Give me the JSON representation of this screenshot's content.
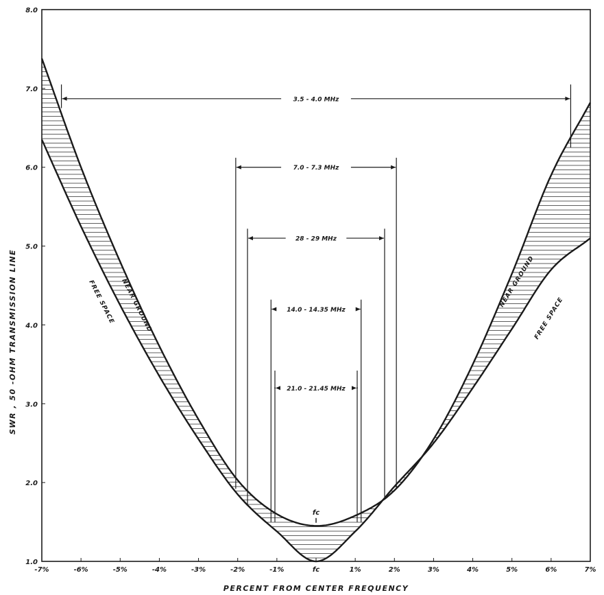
{
  "chart_data": {
    "type": "line",
    "title": "",
    "xlabel": "PERCENT FROM CENTER FREQUENCY",
    "ylabel": "SWR , 50 -OHM TRANSMISSION LINE",
    "xlim": [
      -7,
      7
    ],
    "ylim": [
      1.0,
      8.0
    ],
    "x_ticks": [
      -7,
      -6,
      -5,
      -4,
      -3,
      -2,
      -1,
      0,
      1,
      2,
      3,
      4,
      5,
      6,
      7
    ],
    "x_tick_labels": [
      "-7%",
      "-6%",
      "-5%",
      "-4%",
      "-3%",
      "-2%",
      "-1%",
      "fc",
      "1%",
      "2%",
      "3%",
      "4%",
      "5%",
      "6%",
      "7%"
    ],
    "y_ticks": [
      1.0,
      2.0,
      3.0,
      4.0,
      5.0,
      6.0,
      7.0,
      8.0
    ],
    "y_tick_labels": [
      "1.0",
      "2.0",
      "3.0",
      "4.0",
      "5.0",
      "6.0",
      "7.0",
      "8.0"
    ],
    "grid": false,
    "series": [
      {
        "name": "NEAR GROUND",
        "x": [
          -7,
          -6,
          -5,
          -4,
          -3,
          -2,
          -1,
          0,
          1,
          2,
          3,
          4,
          5,
          6,
          7
        ],
        "y": [
          7.38,
          6.0,
          4.8,
          3.73,
          2.8,
          2.03,
          1.6,
          1.45,
          1.58,
          1.9,
          2.55,
          3.5,
          4.65,
          5.9,
          6.82
        ]
      },
      {
        "name": "FREE SPACE",
        "x": [
          -7,
          -6,
          -5,
          -4,
          -3,
          -2,
          -1,
          0,
          1,
          2,
          3,
          4,
          5,
          6,
          7
        ],
        "y": [
          6.35,
          5.25,
          4.25,
          3.35,
          2.55,
          1.85,
          1.38,
          1.0,
          1.38,
          1.95,
          2.5,
          3.2,
          3.95,
          4.7,
          5.1
        ]
      }
    ],
    "bandwidth_markers": [
      {
        "label": "3.5 - 4.0 MHz",
        "x_lo": -6.5,
        "x_hi": 6.5,
        "y": 6.87,
        "line_top": 7.05,
        "left_bottom": 6.75,
        "right_bottom": 6.25
      },
      {
        "label": "7.0 - 7.3 MHz",
        "x_lo": -2.05,
        "x_hi": 2.05,
        "y": 6.0,
        "line_top": 6.12,
        "left_bottom": 1.92,
        "right_bottom": 1.92
      },
      {
        "label": "28 - 29 MHz",
        "x_lo": -1.75,
        "x_hi": 1.75,
        "y": 5.1,
        "line_top": 5.22,
        "left_bottom": 1.72,
        "right_bottom": 1.82
      },
      {
        "label": "14.0 - 14.35 MHz",
        "x_lo": -1.15,
        "x_hi": 1.15,
        "y": 4.2,
        "line_top": 4.32,
        "left_bottom": 1.5,
        "right_bottom": 1.5
      },
      {
        "label": "21.0 - 21.45 MHz",
        "x_lo": -1.05,
        "x_hi": 1.05,
        "y": 3.2,
        "line_top": 3.42,
        "left_bottom": 1.5,
        "right_bottom": 1.5
      }
    ],
    "annotations": [
      {
        "text": "fc",
        "x": 0,
        "y": 1.67
      }
    ]
  }
}
